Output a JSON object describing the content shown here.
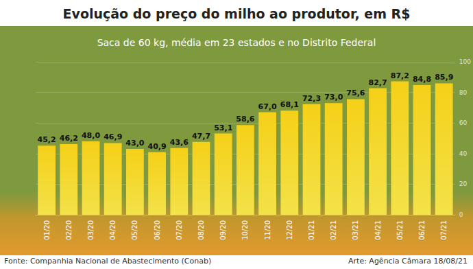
{
  "chart_data": {
    "type": "bar",
    "title": "Evolução do preço do milho ao produtor, em R$",
    "subtitle": "Saca de 60 kg, média em 23 estados e no Distrito Federal",
    "annotations": [
      "Fonte: Companhia Nacional de Abastecimento (Conab)",
      "Arte: Agência Câmara 18/08/21"
    ],
    "categories": [
      "01/20",
      "02/20",
      "03/20",
      "04/20",
      "05/20",
      "06/20",
      "07/20",
      "08/20",
      "09/20",
      "10/20",
      "11/20",
      "12/20",
      "01/21",
      "02/21",
      "03/21",
      "04/21",
      "05/21",
      "06/21",
      "07/21"
    ],
    "values": [
      45.2,
      46.2,
      48.0,
      46.9,
      43.0,
      40.9,
      43.6,
      47.7,
      53.1,
      58.6,
      67.0,
      68.1,
      72.3,
      73.0,
      75.6,
      82.7,
      87.2,
      84.8,
      85.9
    ],
    "value_labels": [
      "45,2",
      "46,2",
      "48,0",
      "46,9",
      "43,0",
      "40,9",
      "43,6",
      "47,7",
      "53,1",
      "58,6",
      "67,0",
      "68,1",
      "72,3",
      "73,0",
      "75,6",
      "82,7",
      "87,2",
      "84,8",
      "85,9"
    ],
    "color": "#f5d018",
    "ylim": [
      0,
      100
    ],
    "yticks": [
      0,
      20,
      40,
      60,
      80,
      100
    ],
    "grid": true,
    "data_labels": true
  }
}
